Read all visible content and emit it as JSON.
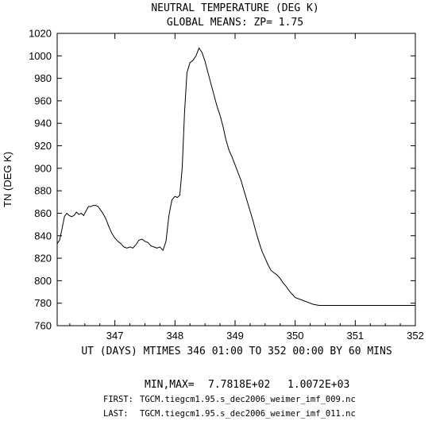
{
  "chart_data": {
    "type": "line",
    "title": "NEUTRAL TEMPERATURE (DEG K)",
    "subtitle": "GLOBAL MEANS: ZP=  1.75",
    "xlabel": "UT (DAYS) MTIMES 346 01:00 TO 352 00:00 BY   60 MINS",
    "ylabel": "TN (DEG K)",
    "xlim": [
      346.04,
      352.0
    ],
    "ylim": [
      760,
      1020
    ],
    "x_ticks": [
      "347",
      "348",
      "349",
      "350",
      "351",
      "352"
    ],
    "y_ticks": [
      "760",
      "780",
      "800",
      "820",
      "840",
      "860",
      "880",
      "900",
      "920",
      "940",
      "960",
      "980",
      "1000",
      "1020"
    ],
    "series": [
      {
        "name": "",
        "x": [
          346.04,
          346.08,
          346.12,
          346.16,
          346.2,
          346.24,
          346.28,
          346.32,
          346.36,
          346.4,
          346.44,
          346.48,
          346.52,
          346.56,
          346.6,
          346.64,
          346.68,
          346.72,
          346.76,
          346.8,
          346.85,
          346.9,
          346.95,
          347.0,
          347.05,
          347.1,
          347.15,
          347.2,
          347.25,
          347.3,
          347.35,
          347.4,
          347.45,
          347.5,
          347.55,
          347.6,
          347.65,
          347.7,
          347.75,
          347.8,
          347.85,
          347.9,
          347.95,
          348.0,
          348.04,
          348.08,
          348.12,
          348.16,
          348.2,
          348.25,
          348.3,
          348.35,
          348.4,
          348.45,
          348.5,
          348.55,
          348.6,
          348.65,
          348.7,
          348.75,
          348.8,
          348.85,
          348.9,
          348.95,
          349.0,
          349.05,
          349.1,
          349.15,
          349.2,
          349.25,
          349.3,
          349.35,
          349.4,
          349.45,
          349.5,
          349.55,
          349.6,
          349.65,
          349.7,
          349.75,
          349.8,
          349.85,
          349.9,
          349.95,
          350.0,
          350.1,
          350.2,
          350.3,
          350.4,
          350.5,
          350.6,
          350.7,
          350.8,
          350.9,
          351.0,
          351.1,
          351.2,
          351.3,
          351.4,
          351.5,
          351.6,
          351.7,
          351.8,
          351.9,
          352.0
        ],
        "y": [
          833,
          836,
          846,
          857,
          860,
          858,
          857,
          858,
          861,
          859,
          860,
          858,
          862,
          866,
          866,
          867,
          867,
          866,
          863,
          860,
          855,
          848,
          842,
          838,
          835,
          833,
          830,
          829,
          830,
          829,
          832,
          836,
          837,
          835,
          834,
          831,
          830,
          829,
          830,
          827,
          835,
          858,
          872,
          875,
          874,
          876,
          900,
          950,
          985,
          994,
          996,
          1000,
          1007,
          1003,
          995,
          985,
          975,
          965,
          955,
          947,
          937,
          925,
          916,
          910,
          903,
          896,
          889,
          880,
          871,
          862,
          853,
          843,
          834,
          826,
          820,
          814,
          809,
          807,
          805,
          802,
          798,
          795,
          791,
          788,
          785,
          783,
          781,
          779,
          778,
          778,
          778,
          778,
          778,
          778,
          778,
          778,
          778,
          778,
          778,
          778,
          778,
          778,
          778,
          778,
          778
        ]
      }
    ]
  },
  "footer": {
    "minmax_label": "MIN,MAX=",
    "min_value": "7.7818E+02",
    "max_value": "1.0072E+03",
    "first_label": "FIRST:",
    "first_file": "TGCM.tiegcm1.95.s_dec2006_weimer_imf_009.nc",
    "last_label": "LAST:",
    "last_file": "TGCM.tiegcm1.95.s_dec2006_weimer_imf_011.nc"
  }
}
